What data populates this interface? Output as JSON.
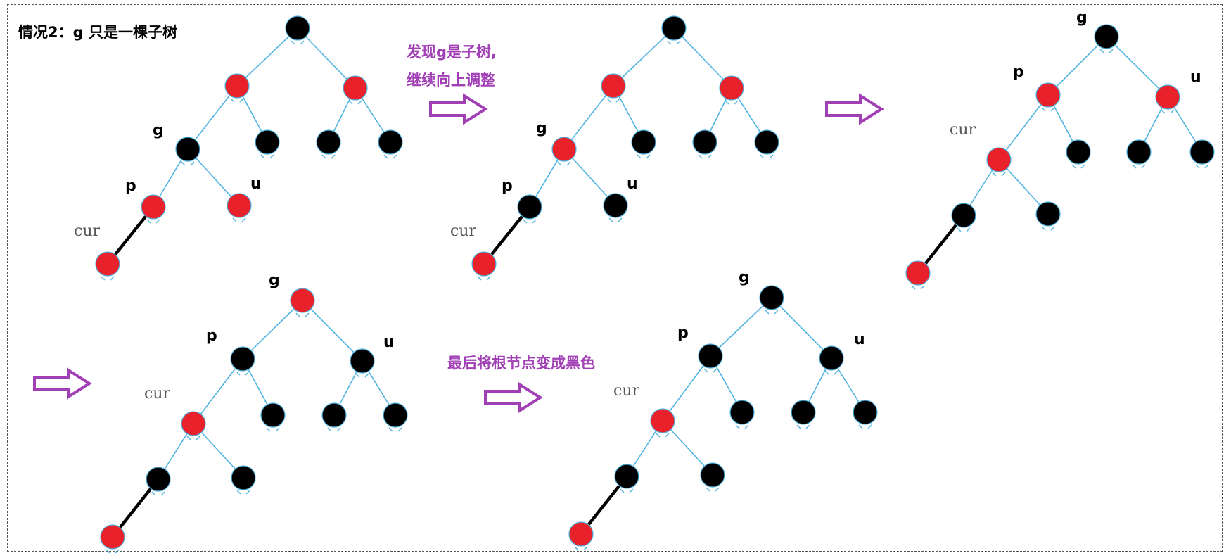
{
  "title": "情况2：g 只是一棵子树",
  "notes": {
    "continue_line1": "发现g是子树,",
    "continue_line2": "继续向上调整",
    "final": "最后将根节点变成黑色"
  },
  "labels": {
    "g": "g",
    "p": "p",
    "u": "u",
    "cur": "cur"
  },
  "colors": {
    "red_node": "#e8212b",
    "black_node": "#000000",
    "edge": "#4fb3e0",
    "new_edge": "#000000",
    "arrow": "#a13fb5",
    "note_text": "#a13fb5",
    "title_text": "#000000"
  },
  "diagrams": [
    {
      "name": "step-1",
      "nodes": [
        {
          "id": "root",
          "color": "black"
        },
        {
          "id": "L",
          "color": "red"
        },
        {
          "id": "R",
          "color": "red"
        },
        {
          "id": "g",
          "color": "black",
          "label": "g"
        },
        {
          "id": "LR",
          "color": "black"
        },
        {
          "id": "RL",
          "color": "black"
        },
        {
          "id": "RR",
          "color": "black"
        },
        {
          "id": "p",
          "color": "red",
          "label": "p"
        },
        {
          "id": "u",
          "color": "red",
          "label": "u"
        },
        {
          "id": "cur",
          "color": "red",
          "label": "cur"
        }
      ]
    },
    {
      "name": "step-2",
      "nodes": [
        {
          "id": "root",
          "color": "black"
        },
        {
          "id": "L",
          "color": "red"
        },
        {
          "id": "R",
          "color": "red"
        },
        {
          "id": "g",
          "color": "red",
          "label": "g"
        },
        {
          "id": "LR",
          "color": "black"
        },
        {
          "id": "RL",
          "color": "black"
        },
        {
          "id": "RR",
          "color": "black"
        },
        {
          "id": "p",
          "color": "black",
          "label": "p"
        },
        {
          "id": "u",
          "color": "black",
          "label": "u"
        },
        {
          "id": "cur",
          "color": "red",
          "label": "cur"
        }
      ]
    },
    {
      "name": "step-3",
      "nodes": [
        {
          "id": "g",
          "color": "black",
          "label": "g"
        },
        {
          "id": "p",
          "color": "red",
          "label": "p"
        },
        {
          "id": "u",
          "color": "red",
          "label": "u"
        },
        {
          "id": "cur",
          "color": "red",
          "label": "cur"
        },
        {
          "id": "pR",
          "color": "black"
        },
        {
          "id": "uL",
          "color": "black"
        },
        {
          "id": "uR",
          "color": "black"
        },
        {
          "id": "cL",
          "color": "black"
        },
        {
          "id": "cR",
          "color": "black"
        },
        {
          "id": "cLL",
          "color": "red"
        }
      ]
    },
    {
      "name": "step-4",
      "nodes": [
        {
          "id": "g",
          "color": "red",
          "label": "g"
        },
        {
          "id": "p",
          "color": "black",
          "label": "p"
        },
        {
          "id": "u",
          "color": "black",
          "label": "u"
        },
        {
          "id": "cur",
          "color": "red",
          "label": "cur"
        },
        {
          "id": "pR",
          "color": "black"
        },
        {
          "id": "uL",
          "color": "black"
        },
        {
          "id": "uR",
          "color": "black"
        },
        {
          "id": "cL",
          "color": "black"
        },
        {
          "id": "cR",
          "color": "black"
        },
        {
          "id": "cLL",
          "color": "red"
        }
      ]
    },
    {
      "name": "step-5",
      "nodes": [
        {
          "id": "g",
          "color": "black",
          "label": "g"
        },
        {
          "id": "p",
          "color": "black",
          "label": "p"
        },
        {
          "id": "u",
          "color": "black",
          "label": "u"
        },
        {
          "id": "cur",
          "color": "red",
          "label": "cur"
        },
        {
          "id": "pR",
          "color": "black"
        },
        {
          "id": "uL",
          "color": "black"
        },
        {
          "id": "uR",
          "color": "black"
        },
        {
          "id": "cL",
          "color": "black"
        },
        {
          "id": "cR",
          "color": "black"
        },
        {
          "id": "cLL",
          "color": "red"
        }
      ]
    }
  ]
}
